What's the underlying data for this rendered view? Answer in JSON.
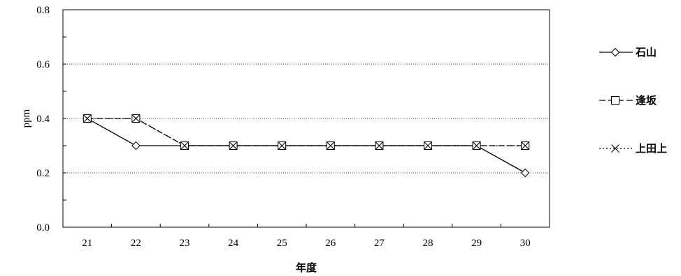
{
  "chart_data": {
    "type": "line",
    "title": "",
    "xlabel": "年度",
    "ylabel": "ppm",
    "categories": [
      "21",
      "22",
      "23",
      "24",
      "25",
      "26",
      "27",
      "28",
      "29",
      "30"
    ],
    "ylim": [
      0,
      0.8
    ],
    "yticks": [
      "0.0",
      "0.2",
      "0.4",
      "0.6",
      "0.8"
    ],
    "grid": "horizontal dotted at 0.2, 0.4, 0.6",
    "legend_position": "right",
    "series": [
      {
        "name": "石山",
        "marker": "diamond",
        "line": "solid",
        "values": [
          0.4,
          0.3,
          0.3,
          0.3,
          0.3,
          0.3,
          0.3,
          0.3,
          0.3,
          0.2
        ]
      },
      {
        "name": "逢坂",
        "marker": "square",
        "line": "dash",
        "values": [
          0.4,
          0.4,
          0.3,
          0.3,
          0.3,
          0.3,
          0.3,
          0.3,
          0.3,
          0.3
        ]
      },
      {
        "name": "上田上",
        "marker": "x",
        "line": "dotted",
        "values": [
          0.4,
          0.4,
          0.3,
          0.3,
          0.3,
          0.3,
          0.3,
          0.3,
          0.3,
          0.3
        ]
      }
    ]
  }
}
